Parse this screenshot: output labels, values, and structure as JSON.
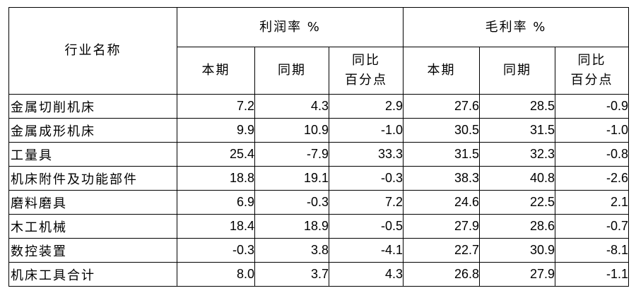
{
  "table": {
    "corner": "行业名称",
    "groups": [
      {
        "label": "利润率 %",
        "columns": [
          "本期",
          "同期",
          "同比\n百分点"
        ]
      },
      {
        "label": "毛利率 %",
        "columns": [
          "本期",
          "同期",
          "同比\n百分点"
        ]
      }
    ],
    "rows": [
      [
        "金属切削机床",
        "7.2",
        "4.3",
        "2.9",
        "27.6",
        "28.5",
        "-0.9"
      ],
      [
        "金属成形机床",
        "9.9",
        "10.9",
        "-1.0",
        "30.5",
        "31.5",
        "-1.0"
      ],
      [
        "工量具",
        "25.4",
        "-7.9",
        "33.3",
        "31.5",
        "32.3",
        "-0.8"
      ],
      [
        "机床附件及功能部件",
        "18.8",
        "19.1",
        "-0.3",
        "38.3",
        "40.8",
        "-2.6"
      ],
      [
        "磨料磨具",
        "6.9",
        "-0.3",
        "7.2",
        "24.6",
        "22.5",
        "2.1"
      ],
      [
        "木工机械",
        "18.4",
        "18.9",
        "-0.5",
        "27.9",
        "28.6",
        "-0.7"
      ],
      [
        "数控装置",
        "-0.3",
        "3.8",
        "-4.1",
        "22.7",
        "30.9",
        "-8.1"
      ],
      [
        "机床工具合计",
        "8.0",
        "3.7",
        "4.3",
        "26.8",
        "27.9",
        "-1.1"
      ]
    ]
  }
}
